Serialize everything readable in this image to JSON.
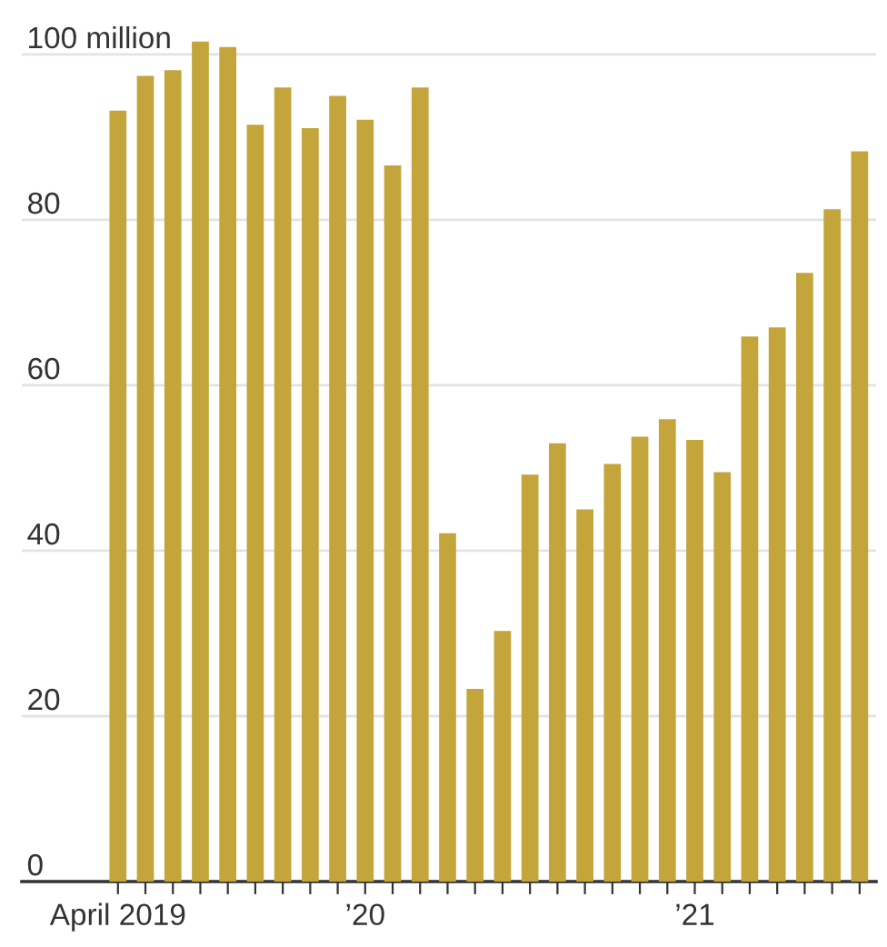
{
  "chart_data": {
    "type": "bar",
    "categories": [
      "April 2019",
      null,
      null,
      null,
      null,
      null,
      null,
      null,
      null,
      "’20",
      null,
      null,
      null,
      null,
      null,
      null,
      null,
      null,
      null,
      null,
      null,
      "’21",
      null,
      null,
      null,
      null,
      null,
      null
    ],
    "series": [
      {
        "color": "#c4a53c",
        "values": [
          93.2,
          97.4,
          98.1,
          101.6,
          100.9,
          91.5,
          96.0,
          91.1,
          95.0,
          92.1,
          86.6,
          96.0,
          42.1,
          23.3,
          30.3,
          49.2,
          53.0,
          45.0,
          50.5,
          53.8,
          55.9,
          53.4,
          49.5,
          65.9,
          67.0,
          73.6,
          81.3,
          88.3
        ]
      }
    ],
    "ylim": [
      0,
      101.6
    ],
    "yticks": [
      0,
      20,
      40,
      60,
      80,
      {
        "value": 100,
        "label": "100 million"
      }
    ],
    "grid": "y",
    "legend": false
  }
}
